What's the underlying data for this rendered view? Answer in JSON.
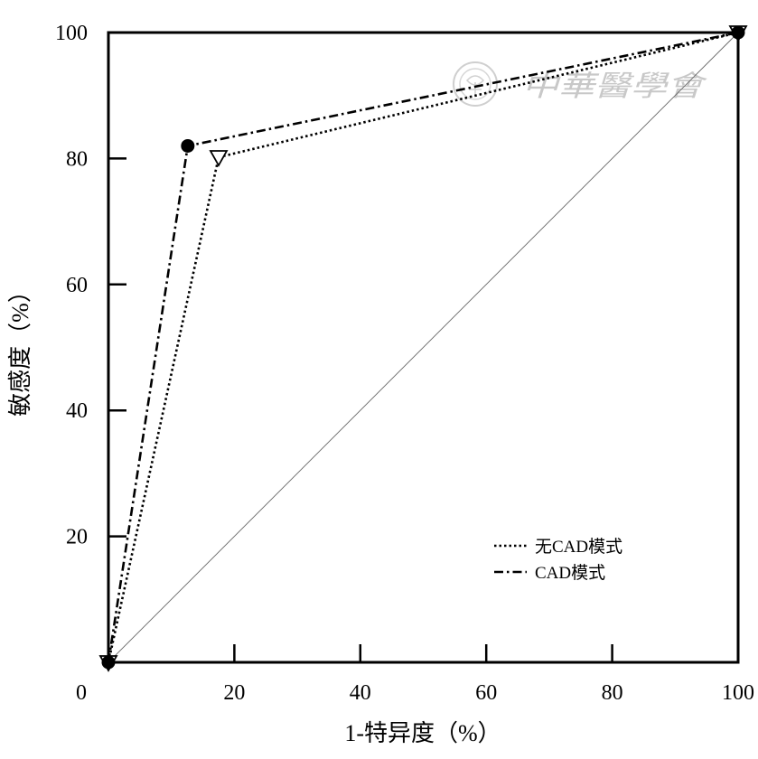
{
  "chart_data": {
    "type": "line",
    "title": "",
    "xlabel": "1-特异度（%）",
    "ylabel": "敏感度（%）",
    "xlim": [
      0,
      100
    ],
    "ylim": [
      0,
      100
    ],
    "x_ticks": [
      20,
      40,
      60,
      80,
      100
    ],
    "y_ticks": [
      20,
      40,
      60,
      80,
      100
    ],
    "origin_label": "0",
    "grid": false,
    "legend_position": "bottom-right",
    "series": [
      {
        "name": "无CAD模式",
        "line_style": "dotted",
        "marker": "triangle-down-open",
        "points": [
          [
            0,
            0
          ],
          [
            17.5,
            80.2
          ],
          [
            100,
            100
          ]
        ]
      },
      {
        "name": "CAD模式",
        "line_style": "dash-dot",
        "marker": "circle-filled",
        "points": [
          [
            0,
            0
          ],
          [
            12.6,
            82
          ],
          [
            100,
            100
          ]
        ]
      }
    ],
    "reference_line": {
      "points": [
        [
          0,
          0
        ],
        [
          100,
          100
        ]
      ],
      "style": "thin-solid"
    },
    "colors": {
      "line": "#000000",
      "background": "#ffffff",
      "watermark": "#c8c8c8"
    }
  },
  "watermark": {
    "text": "中華醫學會",
    "icon": "society-seal-icon"
  }
}
